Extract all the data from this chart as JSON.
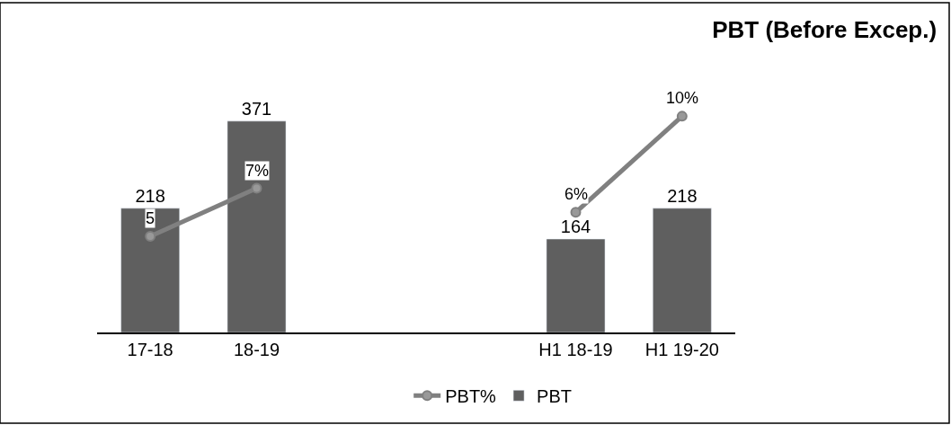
{
  "chart_data": {
    "type": "bar",
    "title": "PBT (Before Excep.)",
    "categories": [
      "17-18",
      "18-19",
      null,
      null,
      "H1 18-19",
      "H1 19-20"
    ],
    "series": [
      {
        "name": "PBT%",
        "type": "line",
        "axis": "y2",
        "color": "#808080",
        "values": [
          5,
          7,
          null,
          null,
          6,
          10
        ],
        "value_labels": [
          "5",
          "7%",
          null,
          null,
          "6%",
          "10%"
        ]
      },
      {
        "name": "PBT",
        "color": "#5f5f5f",
        "values": [
          218,
          371,
          null,
          null,
          164,
          218
        ],
        "value_labels": [
          "218",
          "371",
          null,
          null,
          "164",
          "218"
        ]
      }
    ],
    "tick_labels": "x",
    "marker": "circle",
    "legend": "bottom"
  }
}
